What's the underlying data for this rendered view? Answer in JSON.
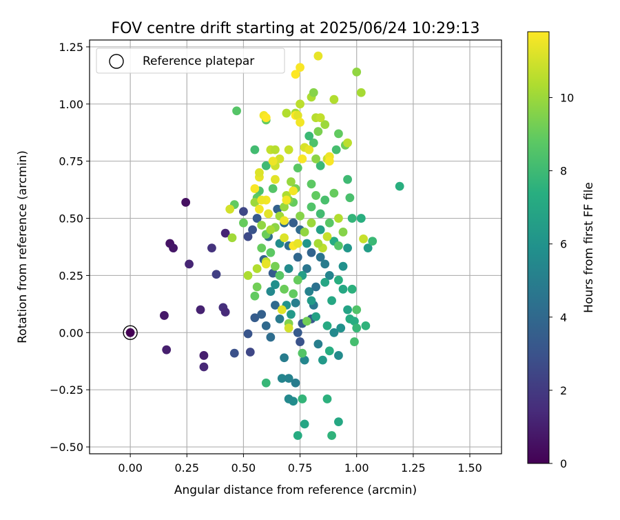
{
  "chart_data": {
    "type": "scatter",
    "title": "FOV centre drift starting at 2025/06/24 10:29:13",
    "xlabel": "Angular distance from reference (arcmin)",
    "ylabel": "Rotation from reference (arcmin)",
    "xlim": [
      -0.18,
      1.64
    ],
    "ylim": [
      -0.53,
      1.28
    ],
    "xticks": [
      0.0,
      0.25,
      0.5,
      0.75,
      1.0,
      1.25,
      1.5
    ],
    "xtick_labels": [
      "0.00",
      "0.25",
      "0.50",
      "0.75",
      "1.00",
      "1.25",
      "1.50"
    ],
    "yticks": [
      -0.5,
      -0.25,
      0.0,
      0.25,
      0.5,
      0.75,
      1.0,
      1.25
    ],
    "ytick_labels": [
      "−0.50",
      "−0.25",
      "0.00",
      "0.25",
      "0.50",
      "0.75",
      "1.00",
      "1.25"
    ],
    "grid": true,
    "legend": {
      "position": "top-left",
      "entries": [
        "Reference platepar"
      ]
    },
    "reference_point": {
      "x": 0.0,
      "y": 0.0
    },
    "colorbar": {
      "label": "Hours from first FF file",
      "colormap": "viridis",
      "range": [
        0,
        11.8
      ],
      "ticks": [
        0,
        2,
        4,
        6,
        8,
        10
      ],
      "tick_labels": [
        "0",
        "2",
        "4",
        "6",
        "8",
        "10"
      ]
    },
    "series": [
      {
        "color_by": "hours",
        "points": [
          [
            0.0,
            0.0,
            0.0
          ],
          [
            0.15,
            0.075,
            0.8
          ],
          [
            0.16,
            -0.075,
            1.0
          ],
          [
            0.175,
            0.39,
            0.6
          ],
          [
            0.19,
            0.37,
            0.7
          ],
          [
            0.245,
            0.57,
            0.5
          ],
          [
            0.26,
            0.3,
            1.2
          ],
          [
            0.31,
            0.1,
            1.1
          ],
          [
            0.325,
            -0.1,
            1.0
          ],
          [
            0.325,
            -0.15,
            1.3
          ],
          [
            0.36,
            0.37,
            1.7
          ],
          [
            0.38,
            0.255,
            2.2
          ],
          [
            0.41,
            0.11,
            1.6
          ],
          [
            0.42,
            0.09,
            1.4
          ],
          [
            0.42,
            0.435,
            1.2
          ],
          [
            0.46,
            -0.09,
            2.9
          ],
          [
            0.5,
            0.53,
            2.5
          ],
          [
            0.52,
            0.42,
            2.6
          ],
          [
            0.53,
            -0.085,
            2.5
          ],
          [
            0.54,
            0.45,
            3.0
          ],
          [
            0.52,
            -0.005,
            3.1
          ],
          [
            0.55,
            0.065,
            3.4
          ],
          [
            0.56,
            0.5,
            3.3
          ],
          [
            0.58,
            0.08,
            3.6
          ],
          [
            0.6,
            0.03,
            4.0
          ],
          [
            0.62,
            -0.02,
            4.2
          ],
          [
            0.63,
            0.26,
            3.4
          ],
          [
            0.64,
            0.12,
            4.0
          ],
          [
            0.65,
            0.54,
            3.7
          ],
          [
            0.68,
            0.48,
            4.1
          ],
          [
            0.66,
            0.06,
            4.8
          ],
          [
            0.68,
            -0.11,
            4.9
          ],
          [
            0.67,
            -0.2,
            5.3
          ],
          [
            0.7,
            -0.2,
            5.2
          ],
          [
            0.72,
            -0.3,
            5.7
          ],
          [
            0.73,
            -0.22,
            4.9
          ],
          [
            0.7,
            0.38,
            4.2
          ],
          [
            0.72,
            0.48,
            3.5
          ],
          [
            0.74,
            0.33,
            3.9
          ],
          [
            0.75,
            0.45,
            4.1
          ],
          [
            0.73,
            0.13,
            5.0
          ],
          [
            0.74,
            0.0,
            3.3
          ],
          [
            0.75,
            -0.04,
            3.0
          ],
          [
            0.76,
            0.04,
            3.4
          ],
          [
            0.77,
            -0.12,
            5.4
          ],
          [
            0.78,
            0.28,
            4.6
          ],
          [
            0.79,
            0.18,
            5.2
          ],
          [
            0.8,
            0.06,
            3.2
          ],
          [
            0.8,
            0.35,
            3.8
          ],
          [
            0.81,
            0.12,
            4.7
          ],
          [
            0.82,
            0.2,
            4.4
          ],
          [
            0.83,
            -0.05,
            5.0
          ],
          [
            0.84,
            0.33,
            4.5
          ],
          [
            0.85,
            -0.12,
            6.3
          ],
          [
            0.86,
            0.3,
            4.9
          ],
          [
            0.88,
            0.25,
            5.3
          ],
          [
            0.9,
            0.0,
            5.5
          ],
          [
            0.92,
            -0.1,
            5.6
          ],
          [
            0.93,
            0.02,
            5.9
          ],
          [
            0.94,
            0.29,
            5.9
          ],
          [
            0.96,
            0.37,
            6.2
          ],
          [
            0.59,
            0.32,
            3.8
          ],
          [
            0.61,
            0.42,
            4.3
          ],
          [
            0.62,
            0.18,
            5.5
          ],
          [
            0.64,
            0.21,
            5.8
          ],
          [
            0.66,
            0.39,
            5.7
          ],
          [
            0.69,
            0.12,
            6.0
          ],
          [
            0.7,
            0.28,
            5.6
          ],
          [
            0.71,
            0.08,
            6.3
          ],
          [
            0.76,
            0.25,
            6.5
          ],
          [
            0.78,
            0.39,
            6.1
          ],
          [
            0.8,
            0.14,
            6.4
          ],
          [
            0.82,
            0.07,
            6.7
          ],
          [
            0.84,
            0.45,
            6.6
          ],
          [
            0.86,
            0.22,
            6.9
          ],
          [
            0.87,
            0.03,
            7.1
          ],
          [
            0.88,
            -0.08,
            7.3
          ],
          [
            0.89,
            0.14,
            7.0
          ],
          [
            0.9,
            0.4,
            7.2
          ],
          [
            0.92,
            0.23,
            7.4
          ],
          [
            0.94,
            0.19,
            7.0
          ],
          [
            0.96,
            0.1,
            6.8
          ],
          [
            0.97,
            0.06,
            7.2
          ],
          [
            0.98,
            0.19,
            7.5
          ],
          [
            0.99,
            0.05,
            7.3
          ],
          [
            1.0,
            0.02,
            7.8
          ],
          [
            1.04,
            0.03,
            7.6
          ],
          [
            1.05,
            0.37,
            6.5
          ],
          [
            1.07,
            0.4,
            7.9
          ],
          [
            1.19,
            0.64,
            7.4
          ],
          [
            0.98,
            0.5,
            7.7
          ],
          [
            0.96,
            0.67,
            8.0
          ],
          [
            0.97,
            0.59,
            8.3
          ],
          [
            0.74,
            -0.45,
            7.2
          ],
          [
            0.77,
            -0.4,
            6.9
          ],
          [
            0.89,
            -0.45,
            7.6
          ],
          [
            0.92,
            -0.39,
            7.0
          ],
          [
            0.87,
            -0.29,
            7.5
          ],
          [
            0.76,
            -0.29,
            7.7
          ],
          [
            0.7,
            -0.29,
            5.5
          ],
          [
            0.6,
            -0.22,
            7.8
          ],
          [
            0.99,
            -0.04,
            8.2
          ],
          [
            1.0,
            0.1,
            8.5
          ],
          [
            1.02,
            0.5,
            7.4
          ],
          [
            0.57,
            0.62,
            8.4
          ],
          [
            0.55,
            0.8,
            8.1
          ],
          [
            0.6,
            0.73,
            8.0
          ],
          [
            0.63,
            0.63,
            8.6
          ],
          [
            0.56,
            0.59,
            8.8
          ],
          [
            0.47,
            0.97,
            8.6
          ],
          [
            0.46,
            0.56,
            8.9
          ],
          [
            0.5,
            0.48,
            9.0
          ],
          [
            0.55,
            0.16,
            8.9
          ],
          [
            0.56,
            0.2,
            9.2
          ],
          [
            0.58,
            0.37,
            9.0
          ],
          [
            0.6,
            0.43,
            9.1
          ],
          [
            0.62,
            0.35,
            8.8
          ],
          [
            0.64,
            0.29,
            9.3
          ],
          [
            0.66,
            0.25,
            8.7
          ],
          [
            0.68,
            0.19,
            9.1
          ],
          [
            0.7,
            0.04,
            9.5
          ],
          [
            0.72,
            0.17,
            8.9
          ],
          [
            0.74,
            0.23,
            9.0
          ],
          [
            0.76,
            -0.09,
            8.6
          ],
          [
            0.78,
            0.05,
            9.2
          ],
          [
            0.8,
            0.55,
            8.5
          ],
          [
            0.82,
            0.6,
            8.9
          ],
          [
            0.84,
            0.52,
            8.1
          ],
          [
            0.86,
            0.58,
            8.3
          ],
          [
            0.88,
            0.48,
            8.7
          ],
          [
            0.9,
            0.61,
            9.0
          ],
          [
            0.92,
            0.87,
            8.9
          ],
          [
            0.95,
            0.82,
            9.2
          ],
          [
            0.94,
            0.44,
            9.6
          ],
          [
            0.92,
            0.38,
            8.6
          ],
          [
            0.91,
            0.8,
            8.2
          ],
          [
            0.84,
            0.73,
            7.9
          ],
          [
            0.81,
            0.83,
            8.4
          ],
          [
            0.8,
            0.65,
            8.8
          ],
          [
            0.79,
            0.86,
            7.9
          ],
          [
            0.82,
            0.76,
            9.7
          ],
          [
            0.83,
            0.88,
            9.4
          ],
          [
            0.86,
            0.91,
            10.0
          ],
          [
            0.74,
            0.72,
            8.7
          ],
          [
            0.72,
            0.57,
            9.0
          ],
          [
            0.7,
            0.58,
            9.5
          ],
          [
            0.68,
            0.55,
            9.9
          ],
          [
            0.66,
            0.51,
            10.1
          ],
          [
            0.64,
            0.46,
            9.7
          ],
          [
            0.62,
            0.45,
            10.2
          ],
          [
            0.6,
            0.93,
            8.9
          ],
          [
            0.58,
            0.47,
            9.8
          ],
          [
            0.55,
            0.57,
            10.0
          ],
          [
            0.52,
            0.25,
            10.3
          ],
          [
            0.45,
            0.415,
            10.1
          ],
          [
            0.56,
            0.28,
            10.4
          ],
          [
            0.6,
            0.31,
            10.6
          ],
          [
            0.62,
            0.8,
            10.7
          ],
          [
            0.64,
            0.8,
            10.5
          ],
          [
            0.64,
            0.73,
            10.9
          ],
          [
            0.66,
            0.76,
            11.0
          ],
          [
            0.7,
            0.8,
            10.8
          ],
          [
            0.69,
            0.96,
            10.4
          ],
          [
            0.73,
            0.96,
            10.2
          ],
          [
            0.75,
            1.0,
            10.6
          ],
          [
            0.8,
            1.03,
            10.3
          ],
          [
            0.81,
            1.05,
            9.6
          ],
          [
            0.82,
            0.94,
            10.5
          ],
          [
            0.84,
            0.94,
            10.7
          ],
          [
            0.87,
            0.76,
            10.9
          ],
          [
            0.9,
            1.02,
            10.4
          ],
          [
            0.96,
            0.83,
            10.6
          ],
          [
            1.0,
            1.14,
            9.8
          ],
          [
            1.02,
            1.05,
            10.2
          ],
          [
            1.03,
            0.41,
            10.8
          ],
          [
            0.92,
            0.5,
            10.4
          ],
          [
            0.87,
            0.42,
            10.8
          ],
          [
            0.85,
            0.37,
            10.6
          ],
          [
            0.83,
            0.39,
            10.2
          ],
          [
            0.8,
            0.48,
            10.0
          ],
          [
            0.77,
            0.44,
            9.8
          ],
          [
            0.75,
            0.51,
            9.6
          ],
          [
            0.73,
            0.63,
            9.3
          ],
          [
            0.71,
            0.66,
            9.9
          ],
          [
            0.69,
            0.6,
            10.3
          ],
          [
            0.64,
            0.67,
            11.3
          ],
          [
            0.63,
            0.75,
            11.5
          ],
          [
            0.6,
            0.58,
            11.6
          ],
          [
            0.57,
            0.68,
            11.4
          ],
          [
            0.57,
            0.7,
            11.2
          ],
          [
            0.55,
            0.63,
            11.7
          ],
          [
            0.44,
            0.54,
            11.0
          ],
          [
            0.59,
            0.95,
            11.6
          ],
          [
            0.6,
            0.94,
            11.8
          ],
          [
            0.61,
            0.52,
            11.3
          ],
          [
            0.68,
            0.415,
            11.2
          ],
          [
            0.68,
            0.49,
            11.5
          ],
          [
            0.69,
            0.58,
            11.6
          ],
          [
            0.72,
            0.38,
            11.7
          ],
          [
            0.74,
            0.39,
            11.4
          ],
          [
            0.72,
            0.62,
            11.6
          ],
          [
            0.73,
            0.95,
            11.8
          ],
          [
            0.74,
            0.95,
            11.3
          ],
          [
            0.75,
            0.92,
            11.6
          ],
          [
            0.73,
            1.13,
            11.8
          ],
          [
            0.75,
            1.16,
            11.7
          ],
          [
            0.83,
            1.21,
            11.4
          ],
          [
            0.76,
            0.76,
            11.7
          ],
          [
            0.77,
            0.81,
            11.1
          ],
          [
            0.88,
            0.77,
            11.5
          ],
          [
            0.88,
            0.75,
            11.7
          ],
          [
            0.79,
            0.8,
            11.4
          ],
          [
            0.6,
            0.3,
            11.4
          ],
          [
            0.67,
            0.1,
            11.3
          ],
          [
            0.7,
            0.02,
            11.0
          ],
          [
            0.57,
            0.54,
            11.6
          ],
          [
            0.58,
            0.58,
            11.5
          ]
        ]
      }
    ]
  }
}
